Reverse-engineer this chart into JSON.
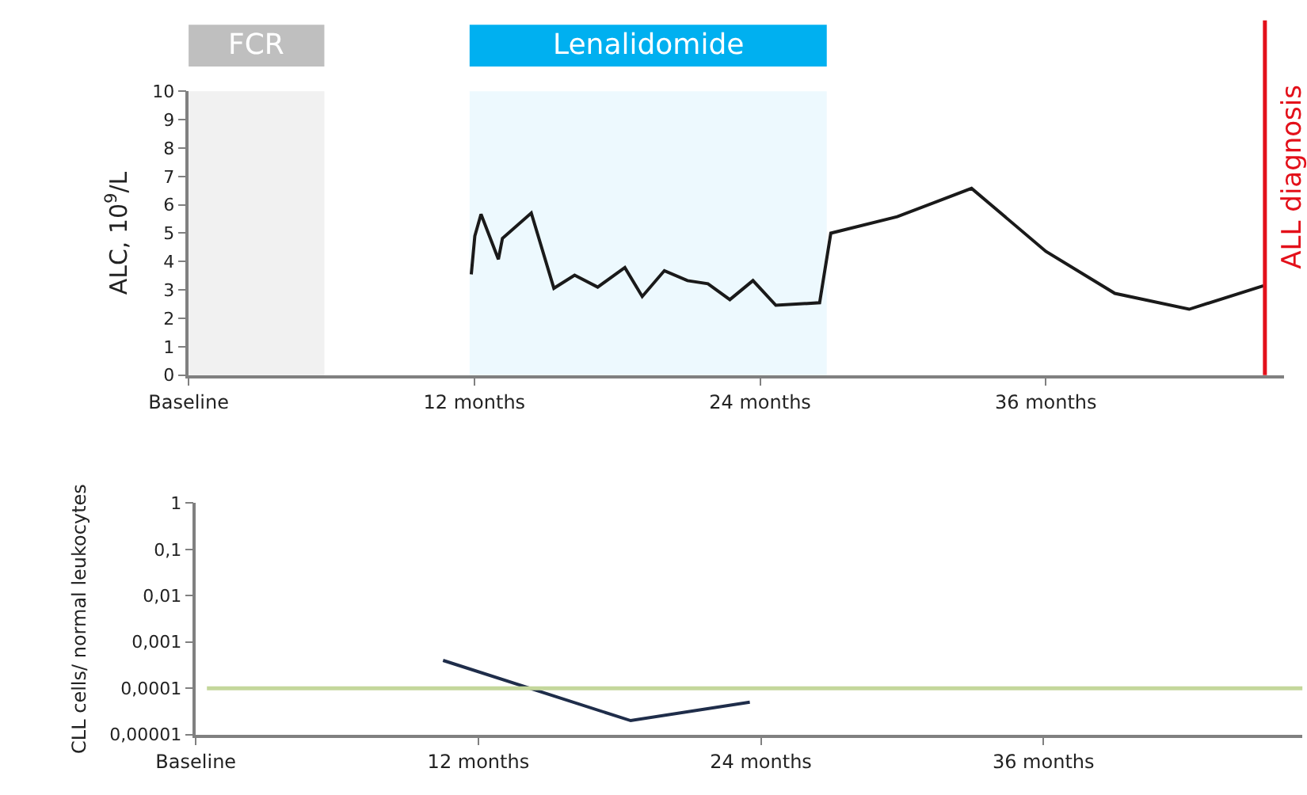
{
  "chart_data": [
    {
      "type": "line",
      "ylabel": "ALC, 10$^{9}$/L",
      "x": [
        11.87,
        12.02,
        12.28,
        13.01,
        13.18,
        14.39,
        15.34,
        16.21,
        17.18,
        18.32,
        19.05,
        19.98,
        20.95,
        21.81,
        22.73,
        23.7,
        24.66,
        26.5,
        26.97,
        29.76,
        32.88,
        36.0,
        38.9,
        42.02,
        45.14
      ],
      "series": [
        {
          "color": "#1a1a1a",
          "values": [
            3.55,
            4.9,
            5.67,
            4.08,
            4.82,
            5.71,
            3.06,
            3.52,
            3.1,
            3.79,
            2.77,
            3.68,
            3.33,
            3.22,
            2.66,
            3.33,
            2.46,
            2.55,
            5.0,
            5.58,
            6.58,
            4.36,
            2.88,
            2.32,
            3.15
          ]
        }
      ],
      "xlim": [
        0,
        46
      ],
      "xticks": [
        {
          "value": 0,
          "label": "Baseline"
        },
        {
          "value": 12,
          "label": "12 months"
        },
        {
          "value": 24,
          "label": "24 months"
        },
        {
          "value": 36,
          "label": "36 months"
        }
      ],
      "ylim": [
        0,
        10
      ],
      "yticks": [
        0,
        1,
        2,
        3,
        4,
        5,
        6,
        7,
        8,
        9,
        10
      ],
      "bands": [
        {
          "axis": "x",
          "from": 0,
          "to": 5.7,
          "label": "FCR",
          "color": "#bfbfbf"
        },
        {
          "axis": "x",
          "from": 11.8,
          "to": 26.8,
          "label": "Lenalidomide",
          "color": "#00b0f0"
        }
      ],
      "ref_lines": [
        {
          "axis": "x",
          "value": 45.2,
          "label": "ALL diagnosis",
          "color": "#e3101a"
        }
      ],
      "grid": false,
      "marker": "none",
      "line_style": "solid"
    },
    {
      "type": "line",
      "ylabel": "CLL cells/ normal leukocytes",
      "x": [
        10.5,
        18.47,
        23.53
      ],
      "series": [
        {
          "color": "#1f2d4a",
          "values": [
            0.0004,
            2e-05,
            5e-05
          ]
        }
      ],
      "xlim": [
        0,
        47
      ],
      "xticks": [
        {
          "value": 0,
          "label": "Baseline"
        },
        {
          "value": 12,
          "label": "12 months"
        },
        {
          "value": 24,
          "label": "24 months"
        },
        {
          "value": 36,
          "label": "36 months"
        }
      ],
      "ylim": [
        1e-05,
        1
      ],
      "log": true,
      "yticks": [
        {
          "value": 1e-05,
          "label": "0,00001"
        },
        {
          "value": 0.0001,
          "label": "0,0001"
        },
        {
          "value": 0.001,
          "label": "0,001"
        },
        {
          "value": 0.01,
          "label": "0,01"
        },
        {
          "value": 0.1,
          "label": "0,1"
        },
        1
      ],
      "ref_lines": [
        {
          "axis": "y",
          "value": 0.0001,
          "color": "#c4d79b"
        }
      ],
      "grid": false,
      "marker": "none",
      "line_style": "solid"
    }
  ]
}
